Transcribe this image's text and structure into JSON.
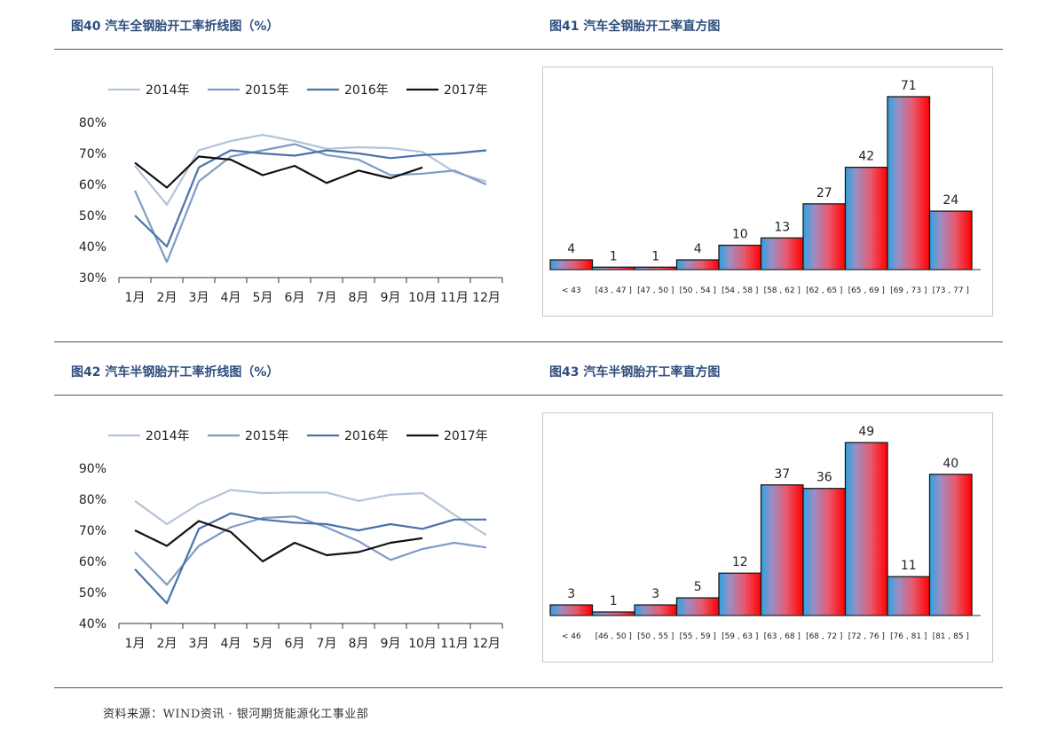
{
  "figures": {
    "fig40_title": "图40 汽车全钢胎开工率折线图（%）",
    "fig41_title": "图41 汽车全钢胎开工率直方图",
    "fig42_title": "图42 汽车半钢胎开工率折线图（%）",
    "fig43_title": "图43 汽车半钢胎开工率直方图"
  },
  "source": "资料来源：WIND资讯 · 银河期货能源化工事业部",
  "colors": {
    "title": "#2e4e7e",
    "s2014": "#b4c3da",
    "s2015": "#7f9cc6",
    "s2016": "#4a73a8",
    "s2017": "#111111",
    "hist_low": "#2aa3e0",
    "hist_mid": "#9a8ec4",
    "hist_high": "#ff0000"
  },
  "chart_data": [
    {
      "id": "line_full",
      "type": "line",
      "categories": [
        "1月",
        "2月",
        "3月",
        "4月",
        "5月",
        "6月",
        "7月",
        "8月",
        "9月",
        "10月",
        "11月",
        "12月"
      ],
      "y_ticks": [
        "30%",
        "40%",
        "50%",
        "60%",
        "70%",
        "80%"
      ],
      "ylim": [
        30,
        80
      ],
      "legend": "top",
      "series": [
        {
          "name": "2014年",
          "color_key": "s2014",
          "values": [
            66,
            53.5,
            71,
            74,
            76,
            74,
            71.5,
            72,
            71.7,
            70.5,
            64,
            61
          ]
        },
        {
          "name": "2015年",
          "color_key": "s2015",
          "values": [
            58,
            35,
            61,
            69,
            71,
            73,
            69.5,
            68,
            63,
            63.5,
            64.5,
            60
          ]
        },
        {
          "name": "2016年",
          "color_key": "s2016",
          "values": [
            50,
            40,
            65.5,
            71,
            70,
            69.3,
            71,
            70,
            68.5,
            69.5,
            70,
            71
          ]
        },
        {
          "name": "2017年",
          "color_key": "s2017",
          "values": [
            67,
            59,
            69,
            68,
            63,
            66,
            60.5,
            64.5,
            62,
            65.5,
            null,
            null
          ]
        }
      ]
    },
    {
      "id": "hist_full",
      "type": "bar",
      "categories": [
        "< 43",
        "[43 , 47 ]",
        "[47 , 50 ]",
        "[50 , 54 ]",
        "[54 , 58 ]",
        "[58 , 62 ]",
        "[62 , 65 ]",
        "[65 , 69 ]",
        "[69 , 73 ]",
        "[73 , 77 ]"
      ],
      "values": [
        4,
        1,
        1,
        4,
        10,
        13,
        27,
        42,
        71,
        24
      ]
    },
    {
      "id": "line_semi",
      "type": "line",
      "categories": [
        "1月",
        "2月",
        "3月",
        "4月",
        "5月",
        "6月",
        "7月",
        "8月",
        "9月",
        "10月",
        "11月",
        "12月"
      ],
      "y_ticks": [
        "40%",
        "50%",
        "60%",
        "70%",
        "80%",
        "90%"
      ],
      "ylim": [
        40,
        90
      ],
      "legend": "top",
      "series": [
        {
          "name": "2014年",
          "color_key": "s2014",
          "values": [
            79.5,
            72,
            78.5,
            83,
            82,
            82.2,
            82.2,
            79.5,
            81.5,
            82,
            75,
            68.5
          ]
        },
        {
          "name": "2015年",
          "color_key": "s2015",
          "values": [
            63,
            52.5,
            65,
            71,
            74,
            74.5,
            71,
            66.5,
            60.5,
            64,
            66,
            64.5
          ]
        },
        {
          "name": "2016年",
          "color_key": "s2016",
          "values": [
            57.5,
            46.5,
            70.5,
            75.5,
            73.5,
            72.5,
            72,
            70,
            72,
            70.5,
            73.5,
            73.5
          ]
        },
        {
          "name": "2017年",
          "color_key": "s2017",
          "values": [
            70,
            65,
            73,
            69.5,
            60,
            66,
            62,
            63,
            66,
            67.5,
            null,
            null
          ]
        }
      ]
    },
    {
      "id": "hist_semi",
      "type": "bar",
      "categories": [
        "< 46",
        "[46 , 50 ]",
        "[50 , 55 ]",
        "[55 , 59 ]",
        "[59 , 63 ]",
        "[63 , 68 ]",
        "[68 , 72 ]",
        "[72 , 76 ]",
        "[76 , 81 ]",
        "[81 , 85 ]"
      ],
      "values": [
        3,
        1,
        3,
        5,
        12,
        37,
        36,
        49,
        11,
        40
      ]
    }
  ]
}
